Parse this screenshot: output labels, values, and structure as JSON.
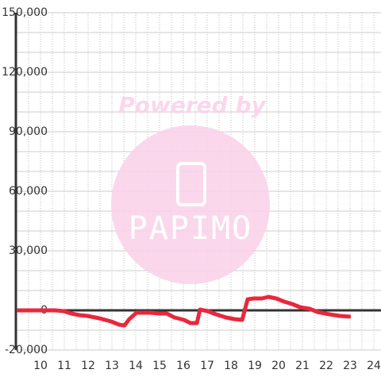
{
  "chart_data": {
    "type": "line",
    "watermark": {
      "line1": "Powered by",
      "line2": "PAPIMO"
    },
    "x": [
      9,
      10.63,
      10.97,
      11.3,
      11.63,
      11.97,
      12.47,
      12.97,
      13.3,
      13.53,
      13.73,
      14.03,
      14.63,
      14.97,
      15.3,
      15.63,
      16.03,
      16.3,
      16.57,
      16.7,
      17.03,
      17.37,
      17.8,
      18.13,
      18.47,
      18.7,
      18.97,
      19.3,
      19.57,
      19.9,
      20.23,
      20.57,
      20.9,
      21.3,
      21.63,
      22.13,
      22.57,
      23.03
    ],
    "series": [
      {
        "color": "#e8283c",
        "values": [
          0,
          0,
          -400,
          -1600,
          -2400,
          -2800,
          -4000,
          -5600,
          -7200,
          -7600,
          -4400,
          -1200,
          -1200,
          -1600,
          -1600,
          -3600,
          -4800,
          -6400,
          -6400,
          400,
          -400,
          -2000,
          -3600,
          -4400,
          -4800,
          5600,
          6000,
          6000,
          6800,
          6000,
          4400,
          3200,
          1600,
          800,
          -800,
          -2000,
          -2800,
          -3200
        ]
      }
    ],
    "xlim": [
      9,
      24.3
    ],
    "xticks": [
      10,
      11,
      12,
      13,
      14,
      15,
      16,
      17,
      18,
      19,
      20,
      21,
      22,
      23,
      24
    ],
    "ylim": [
      -20000,
      150000
    ],
    "yticks": [
      {
        "value": -20000,
        "label": "-20,000"
      },
      0,
      {
        "value": 30000,
        "label": "30,000"
      },
      {
        "value": 60000,
        "label": "60,000"
      },
      {
        "value": 90000,
        "label": "90,000"
      },
      {
        "value": 120000,
        "label": "120,000"
      },
      {
        "value": 150000,
        "label": "150,000"
      }
    ],
    "grid": true
  }
}
